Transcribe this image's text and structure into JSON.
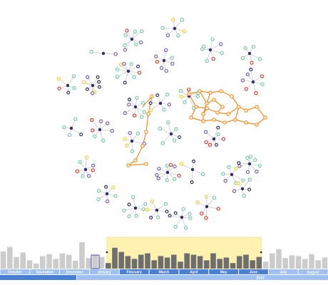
{
  "colors": {
    "node_teal": "#7ccaa6",
    "node_navy": "#2f2f66",
    "node_purple": "#7a63a8",
    "node_yellow": "#e8d23a",
    "node_red": "#d9423a",
    "node_orange": "#ff8c1a",
    "edge": "#b9b9b9",
    "highlight_edge": "#f28a22",
    "bar_gray": "#cccccc",
    "bar_selected": "#6e6e6e",
    "window_fill": "#fff2b0",
    "scale_major": "#4a7fd6",
    "scale_minor": "#9ec0f2"
  },
  "timeline": {
    "months": [
      {
        "label": "October",
        "selected": false
      },
      {
        "label": "November",
        "selected": false
      },
      {
        "label": "December",
        "selected": false
      },
      {
        "label": "January",
        "selected": false
      },
      {
        "label": "February",
        "selected": true
      },
      {
        "label": "March",
        "selected": true
      },
      {
        "label": "April",
        "selected": true
      },
      {
        "label": "May",
        "selected": true
      },
      {
        "label": "June",
        "selected": true
      },
      {
        "label": "July",
        "selected": false
      },
      {
        "label": "August",
        "selected": false
      }
    ],
    "year_label": "2013",
    "bars": [
      0.62,
      0.78,
      0.42,
      0.58,
      0.3,
      0.18,
      0.45,
      0.52,
      0.35,
      0.55,
      0.5,
      0.28,
      0.95,
      0.38,
      0.5,
      0.42,
      0.2,
      0.75,
      0.6,
      0.45,
      0.35,
      0.5,
      0.55,
      0.3,
      0.45,
      0.4,
      0.5,
      0.25,
      0.55,
      0.5,
      0.45,
      0.3,
      0.55,
      0.35,
      0.4,
      0.2,
      0.45,
      0.5,
      0.3,
      0.42,
      0.25,
      0.55,
      0.7,
      0.38,
      0.48,
      0.45,
      0.35,
      0.52,
      0.3,
      0.4
    ],
    "selected_range": [
      0.326,
      0.796
    ]
  }
}
